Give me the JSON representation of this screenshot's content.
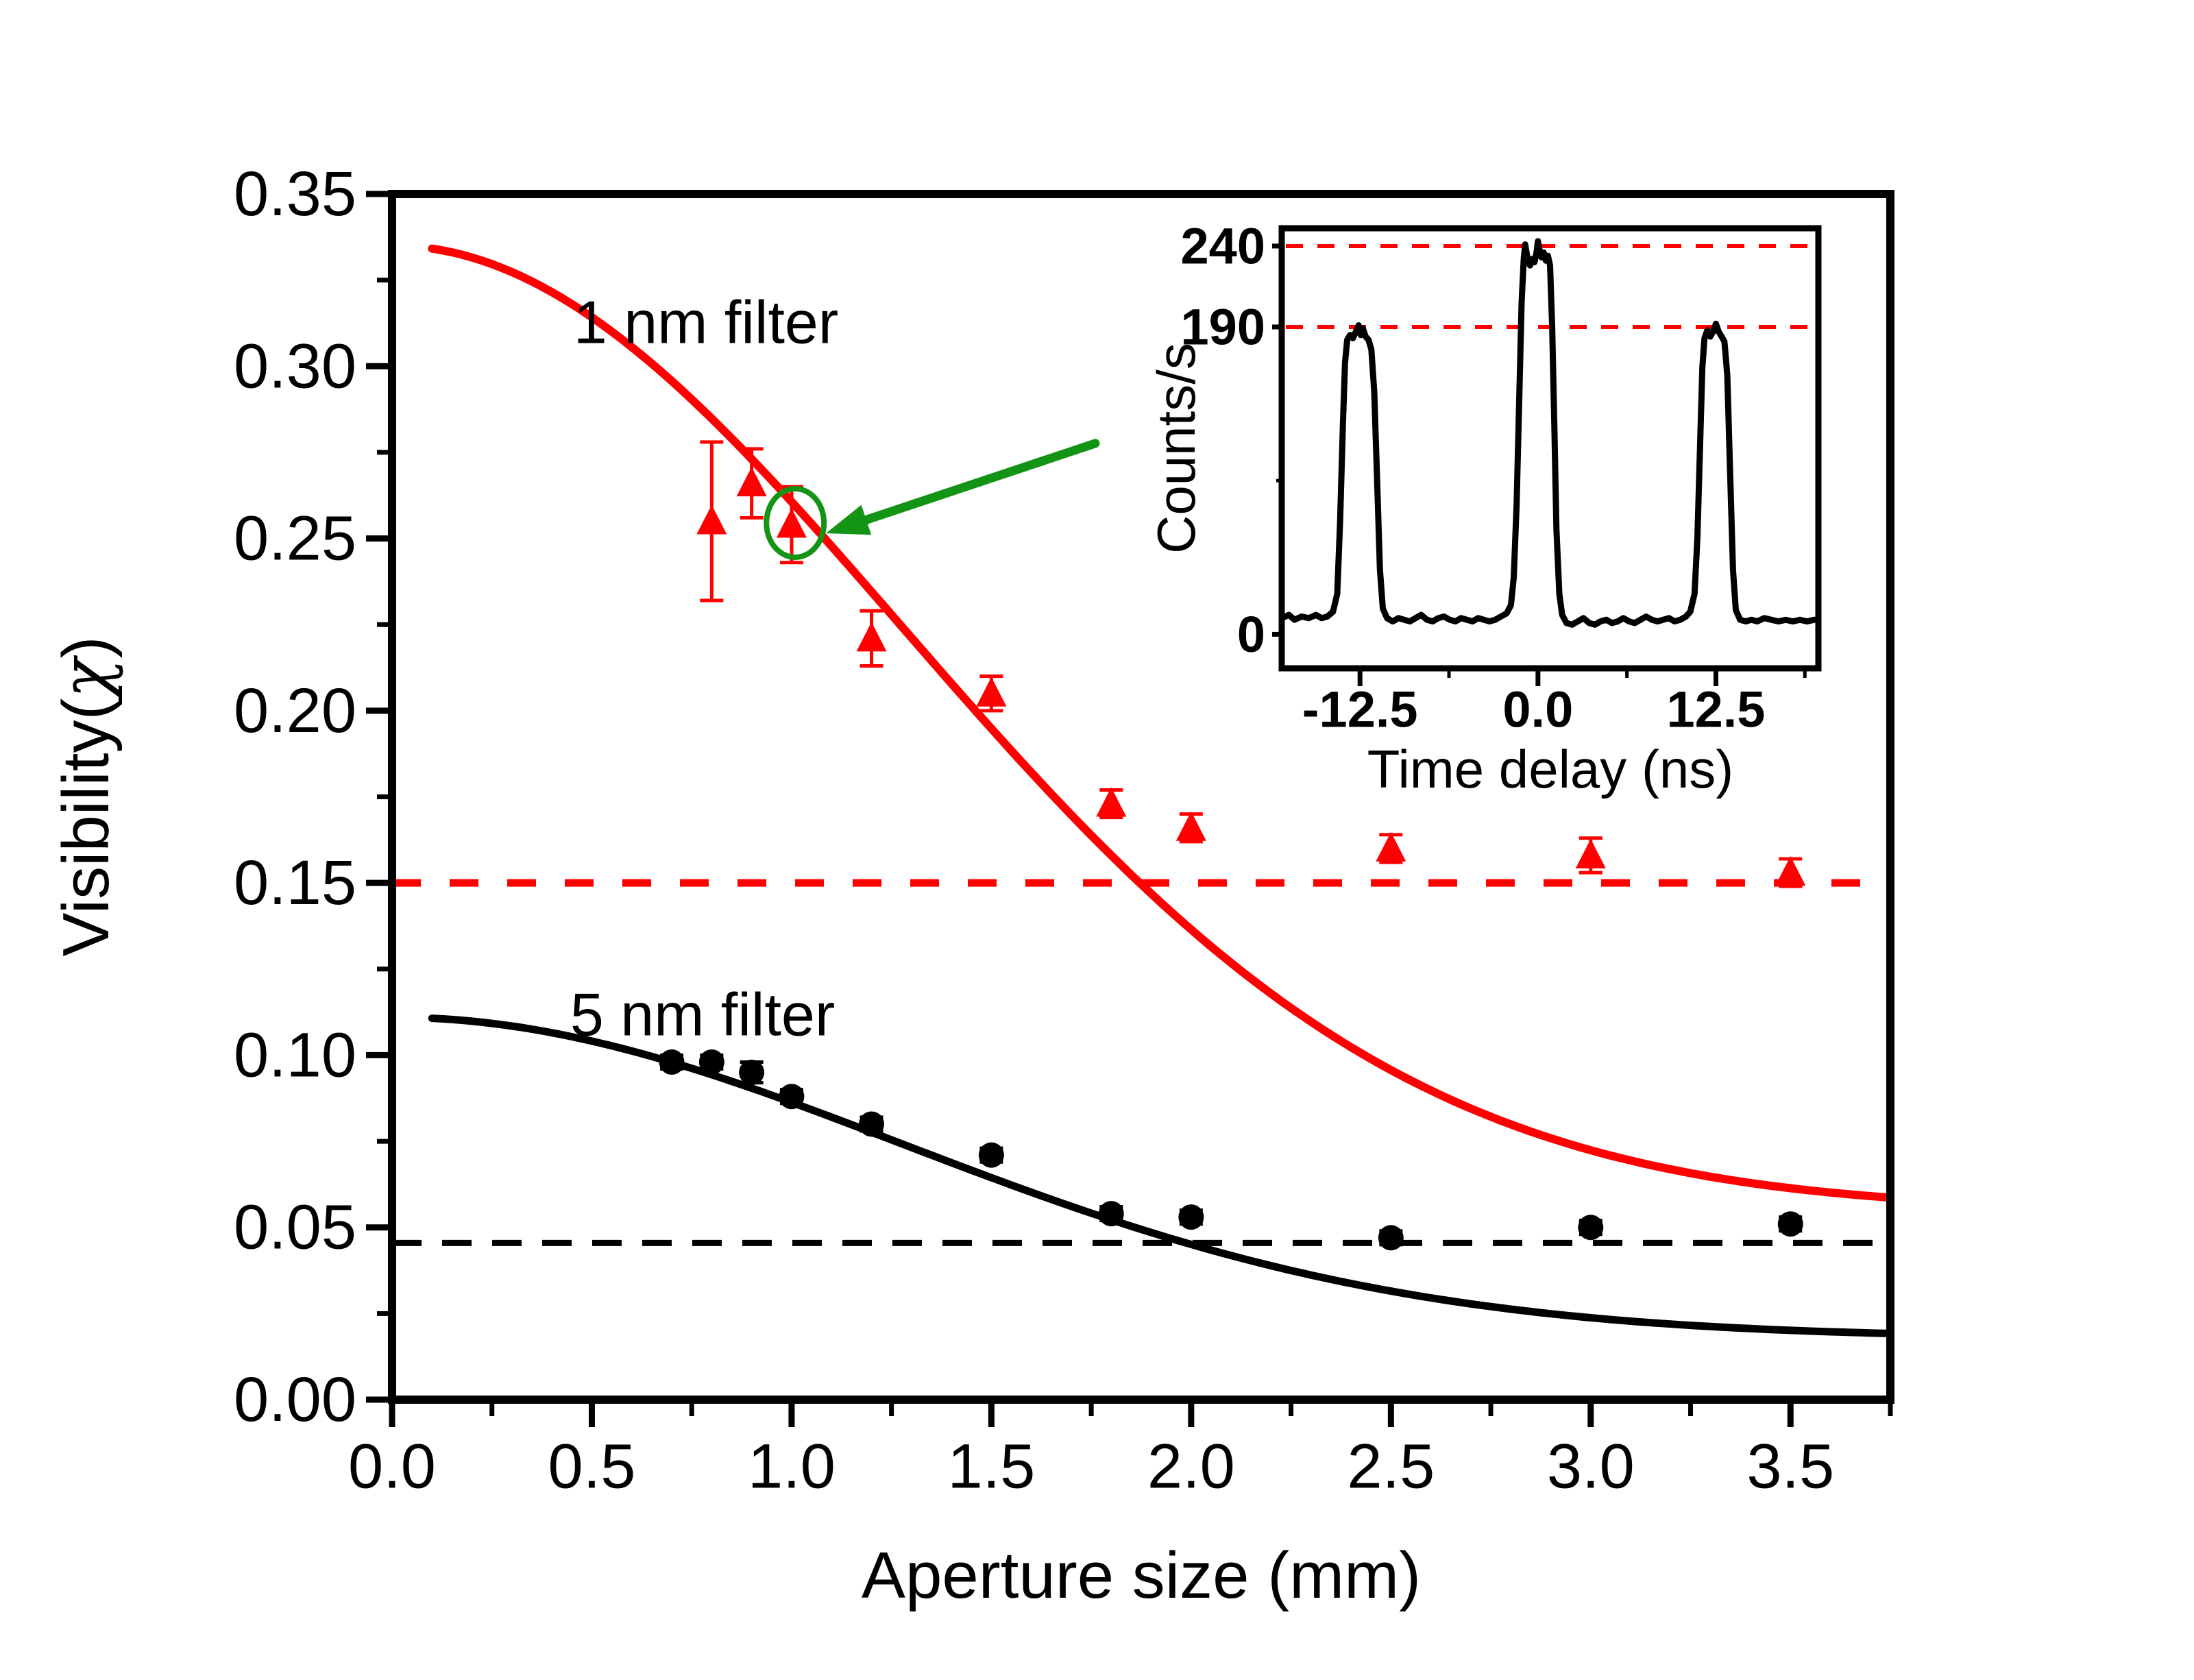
{
  "figure": {
    "background": "#ffffff",
    "colors": {
      "series1": "#ff0000",
      "series2": "#000000",
      "highlight": "#149414",
      "axis": "#000000"
    }
  },
  "chart_data": [
    {
      "id": "main",
      "type": "scatter",
      "title": "",
      "xlabel": "Aperture size (mm)",
      "ylabel": "Visibility(χ)",
      "ylabel_parts": [
        "Visibility(",
        "χ",
        ")"
      ],
      "xlim": [
        0,
        3.75
      ],
      "ylim": [
        0,
        0.35
      ],
      "grid": false,
      "legend_position": "none",
      "x_ticks": {
        "values": [
          0,
          0.5,
          1.0,
          1.5,
          2.0,
          2.5,
          3.0,
          3.5
        ],
        "labels": [
          "0.0",
          "0.5",
          "1.0",
          "1.5",
          "2.0",
          "2.5",
          "3.0",
          "3.5"
        ]
      },
      "x_minor_ticks": [
        0.25,
        0.75,
        1.25,
        1.75,
        2.25,
        2.75,
        3.25,
        3.75
      ],
      "y_ticks": {
        "values": [
          0,
          0.05,
          0.1,
          0.15,
          0.2,
          0.25,
          0.3,
          0.35
        ],
        "labels": [
          "0.00",
          "0.05",
          "0.10",
          "0.15",
          "0.20",
          "0.25",
          "0.30",
          "0.35"
        ]
      },
      "y_minor_ticks": [
        0.025,
        0.075,
        0.125,
        0.175,
        0.225,
        0.275,
        0.325
      ],
      "series": [
        {
          "name": "1 nm filter",
          "marker": "triangle",
          "color": "#ff0000",
          "x": [
            0.8,
            0.9,
            1.0,
            1.2,
            1.5,
            1.8,
            2.0,
            2.5,
            3.0,
            3.5
          ],
          "y": [
            0.255,
            0.266,
            0.254,
            0.221,
            0.205,
            0.173,
            0.166,
            0.16,
            0.158,
            0.153
          ],
          "yerr": [
            0.023,
            0.01,
            0.011,
            0.008,
            0.005,
            0.004,
            0.004,
            0.004,
            0.005,
            0.004
          ],
          "fit": {
            "model": "A*exp(-(x/w)^2)+C",
            "A": 0.28,
            "w": 1.8,
            "C": 0.055,
            "x_range": [
              0.1,
              3.75
            ]
          },
          "asymptote_dashed_y": 0.15,
          "label": {
            "text": "1 nm filter",
            "x": 0.786,
            "y": 0.3128
          }
        },
        {
          "name": "5 nm filter",
          "marker": "circle",
          "color": "#000000",
          "x": [
            0.7,
            0.8,
            0.9,
            1.0,
            1.2,
            1.5,
            1.8,
            2.0,
            2.5,
            3.0,
            3.5
          ],
          "y": [
            0.098,
            0.098,
            0.095,
            0.088,
            0.08,
            0.071,
            0.054,
            0.053,
            0.047,
            0.05,
            0.051
          ],
          "yerr": [
            0.002,
            0.002,
            0.003,
            0.002,
            0.002,
            0.002,
            0.002,
            0.002,
            0.002,
            0.002,
            0.002
          ],
          "fit": {
            "model": "A*exp(-(x/w)^2)+C",
            "A": 0.093,
            "w": 1.8,
            "C": 0.018,
            "x_range": [
              0.1,
              3.75
            ]
          },
          "asymptote_dashed_y": 0.0455,
          "label": {
            "text": "5 nm filter",
            "x": 0.777,
            "y": 0.1118
          }
        }
      ],
      "highlight": {
        "type": "circle-and-arrow",
        "color": "#149414",
        "circle_center": [
          1.009,
          0.2545
        ],
        "arrow_tail": [
          1.76,
          0.2776
        ],
        "arrow_tip": [
          1.086,
          0.2515
        ]
      }
    },
    {
      "id": "inset",
      "type": "line",
      "xlabel": "Time delay (ns)",
      "ylabel": "Counts/s",
      "xlim": [
        -18,
        19.7
      ],
      "ylim": [
        -21,
        251
      ],
      "grid": false,
      "x_ticks": {
        "values": [
          -12.5,
          0,
          12.5
        ],
        "labels": [
          "-12.5",
          "0.0",
          "12.5"
        ]
      },
      "x_minor_ticks": [
        -6.25,
        6.25,
        18.75
      ],
      "y_ticks": {
        "values": [
          240,
          190,
          0
        ],
        "labels": [
          "240",
          "190",
          "0"
        ]
      },
      "y_minor_ticks": [
        95
      ],
      "dashed_guides_y": [
        240,
        190
      ],
      "guide_color": "#ff0000",
      "trace": {
        "color": "#000000",
        "x": [
          -18,
          -17.5,
          -17.1,
          -16.6,
          -16.1,
          -15.6,
          -15.2,
          -14.8,
          -14.4,
          -14.1,
          -13.9,
          -13.7,
          -13.55,
          -13.4,
          -13.2,
          -13,
          -12.8,
          -12.6,
          -12.45,
          -12.3,
          -12.1,
          -11.9,
          -11.7,
          -11.5,
          -11.3,
          -11.1,
          -10.9,
          -10.6,
          -10.2,
          -9.8,
          -9.4,
          -9,
          -8.6,
          -8.2,
          -7.8,
          -7.4,
          -7,
          -6.6,
          -6.2,
          -5.8,
          -5.4,
          -5,
          -4.6,
          -4.2,
          -3.8,
          -3.4,
          -3,
          -2.6,
          -2.2,
          -1.9,
          -1.7,
          -1.5,
          -1.3,
          -1.15,
          -1,
          -0.9,
          -0.8,
          -0.7,
          -0.55,
          -0.4,
          -0.25,
          -0.1,
          0,
          0.1,
          0.25,
          0.4,
          0.55,
          0.7,
          0.85,
          1,
          1.15,
          1.3,
          1.5,
          1.7,
          2,
          2.4,
          2.8,
          3.2,
          3.6,
          4,
          4.4,
          4.8,
          5.2,
          5.6,
          6,
          6.4,
          6.8,
          7.2,
          7.6,
          8,
          8.4,
          8.8,
          9.2,
          9.6,
          10,
          10.4,
          10.7,
          11,
          11.2,
          11.4,
          11.55,
          11.7,
          11.9,
          12.1,
          12.3,
          12.5,
          12.7,
          12.9,
          13.1,
          13.3,
          13.5,
          13.7,
          13.9,
          14.2,
          14.6,
          15,
          15.4,
          15.9,
          16.4,
          16.9,
          17.4,
          17.9,
          18.4,
          18.9,
          19.4,
          19.7
        ],
        "y": [
          10,
          12,
          9,
          11,
          10,
          12,
          10,
          11,
          14,
          25,
          70,
          130,
          168,
          182,
          185,
          183,
          187,
          191,
          185,
          189,
          184,
          182,
          176,
          150,
          95,
          40,
          16,
          10,
          8,
          10,
          9,
          8,
          10,
          12,
          9,
          8,
          10,
          11,
          9,
          8,
          10,
          9,
          8,
          10,
          9,
          8,
          9,
          11,
          13,
          18,
          35,
          80,
          150,
          205,
          232,
          241,
          236,
          230,
          228,
          232,
          230,
          236,
          243,
          238,
          233,
          236,
          231,
          234,
          228,
          190,
          130,
          65,
          25,
          12,
          7,
          6,
          8,
          10,
          7,
          6,
          8,
          9,
          7,
          8,
          10,
          8,
          7,
          9,
          11,
          9,
          8,
          9,
          10,
          8,
          9,
          11,
          14,
          25,
          60,
          120,
          165,
          183,
          188,
          184,
          187,
          192,
          187,
          184,
          181,
          160,
          100,
          40,
          15,
          9,
          8,
          9,
          8,
          10,
          9,
          8,
          9,
          8,
          9,
          8,
          9,
          9
        ]
      }
    }
  ]
}
